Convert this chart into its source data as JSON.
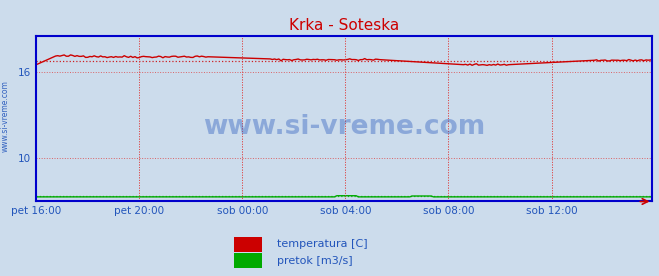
{
  "title": "Krka - Soteska",
  "bg_color": "#ccdcec",
  "plot_bg_color": "#ccdcec",
  "border_color": "#0000cc",
  "grid_color": "#dd4444",
  "grid_style": ":",
  "yticks": [
    10,
    16
  ],
  "ylim": [
    7.0,
    18.5
  ],
  "xlim": [
    0,
    287
  ],
  "xtick_labels": [
    "pet 16:00",
    "pet 20:00",
    "sob 00:00",
    "sob 04:00",
    "sob 08:00",
    "sob 12:00"
  ],
  "xtick_positions": [
    0,
    48,
    96,
    144,
    192,
    240
  ],
  "temp_color": "#cc0000",
  "pretok_color": "#00aa00",
  "temp_avg": 16.75,
  "pretok_avg": 7.35,
  "watermark": "www.si-vreme.com",
  "watermark_color": "#2255bb",
  "side_text": "www.si-vreme.com",
  "legend_temp": "temperatura [C]",
  "legend_pretok": "pretok [m3/s]",
  "tick_color": "#2255bb",
  "title_color": "#cc0000",
  "n_points": 288
}
